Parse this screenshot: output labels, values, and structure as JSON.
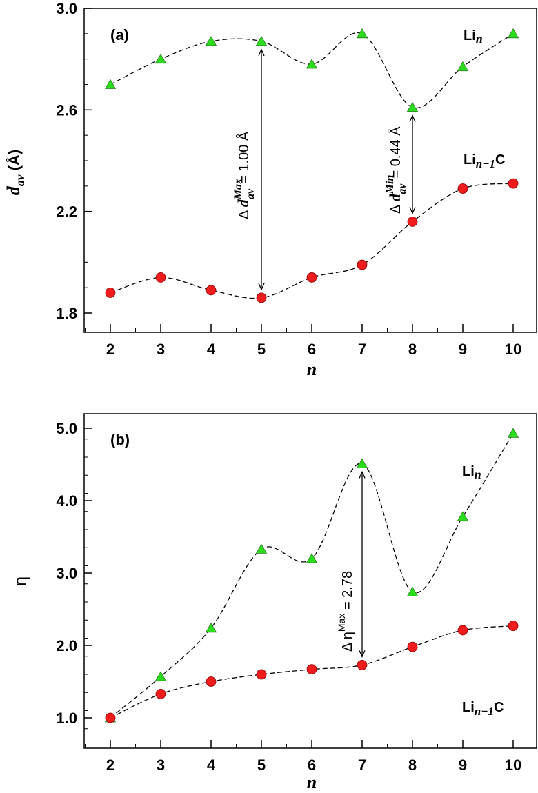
{
  "chart_data": [
    {
      "type": "line",
      "panel_label": "(a)",
      "xlabel": "n",
      "ylabel_main": "d",
      "ylabel_sub": "av",
      "ylabel_unit": "(Å)",
      "x": [
        2,
        3,
        4,
        5,
        6,
        7,
        8,
        9,
        10
      ],
      "xticks": [
        "2",
        "3",
        "4",
        "5",
        "6",
        "7",
        "8",
        "9",
        "10"
      ],
      "yticks": [
        "1.8",
        "2.2",
        "2.6",
        "3.0"
      ],
      "ylim": [
        1.8,
        3.0
      ],
      "series": [
        {
          "name_main": "Li",
          "name_sub": "n",
          "name_suffix": "",
          "marker": "triangle",
          "color": "#2bdc1c",
          "values": [
            2.7,
            2.8,
            2.87,
            2.87,
            2.78,
            2.9,
            2.61,
            2.77,
            2.9
          ]
        },
        {
          "name_main": "Li",
          "name_sub": "n−1",
          "name_suffix": "C",
          "marker": "circle",
          "color": "#ee1c1c",
          "values": [
            1.88,
            1.94,
            1.89,
            1.86,
            1.94,
            1.99,
            2.16,
            2.29,
            2.31
          ]
        }
      ],
      "annotations": [
        {
          "prefix": "Δ ",
          "main": "d",
          "sup": "Max",
          "sub": "av",
          "value": "= 1.00 Å",
          "x": 5,
          "y_top": 2.87,
          "y_bottom": 1.86
        },
        {
          "prefix": "Δ ",
          "main": "d",
          "sup": "Min",
          "sub": "av",
          "value": "= 0.44 Å",
          "x": 8,
          "y_top": 2.61,
          "y_bottom": 2.16
        }
      ]
    },
    {
      "type": "line",
      "panel_label": "(b)",
      "xlabel": "n",
      "ylabel": "η",
      "x": [
        2,
        3,
        4,
        5,
        6,
        7,
        8,
        9,
        10
      ],
      "xticks": [
        "2",
        "3",
        "4",
        "5",
        "6",
        "7",
        "8",
        "9",
        "10"
      ],
      "yticks": [
        "1.0",
        "2.0",
        "3.0",
        "4.0",
        "5.0"
      ],
      "ylim": [
        0.85,
        5.1
      ],
      "series": [
        {
          "name_main": "Li",
          "name_sub": "n",
          "name_suffix": "",
          "marker": "triangle",
          "color": "#2bdc1c",
          "values": [
            1.0,
            1.57,
            2.24,
            3.33,
            3.2,
            4.51,
            2.74,
            3.78,
            4.93
          ]
        },
        {
          "name_main": "Li",
          "name_sub": "n−1",
          "name_suffix": "C",
          "marker": "circle",
          "color": "#ee1c1c",
          "values": [
            1.0,
            1.33,
            1.5,
            1.6,
            1.67,
            1.73,
            1.98,
            2.21,
            2.27
          ]
        }
      ],
      "annotations": [
        {
          "prefix": "Δ η",
          "sup": "Max",
          "value": " = 2.78",
          "x": 7,
          "y_top": 4.51,
          "y_bottom": 1.73
        }
      ]
    }
  ]
}
